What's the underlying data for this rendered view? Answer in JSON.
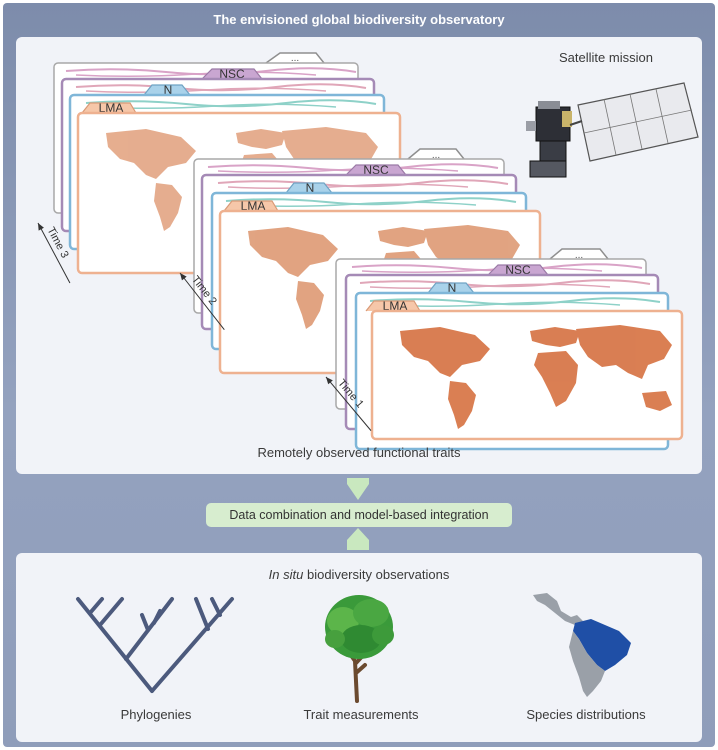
{
  "title": "The envisioned global biodiversity observatory",
  "satellite_label": "Satellite mission",
  "remote_label": "Remotely observed functional traits",
  "integration_label": "Data combination and model-based integration",
  "insitu": {
    "italic": "In situ",
    "rest": " biodiversity observations"
  },
  "bottom_items": [
    {
      "label": "Phylogenies",
      "icon": "phylogeny-tree-icon"
    },
    {
      "label": "Trait measurements",
      "icon": "tree-icon"
    },
    {
      "label": "Species distributions",
      "icon": "south-america-map-icon"
    }
  ],
  "stack_tabs": {
    "ellipsis": "...",
    "nsc": "NSC",
    "n": "N",
    "lma": "LMA"
  },
  "times": [
    "Time 1",
    "Time 2",
    "Time 3"
  ],
  "colors": {
    "background": "#8a98b6",
    "panel": "#f1f3f8",
    "lma": "#f6c7a9",
    "n": "#a9d2ea",
    "nsc": "#c9a6d1",
    "gray_card": "#d9d9d9",
    "map_orange": "#d8784a",
    "integration": "#d7edcf",
    "phylogeny": "#4c5a7d",
    "map_blue": "#1f4fa6"
  }
}
